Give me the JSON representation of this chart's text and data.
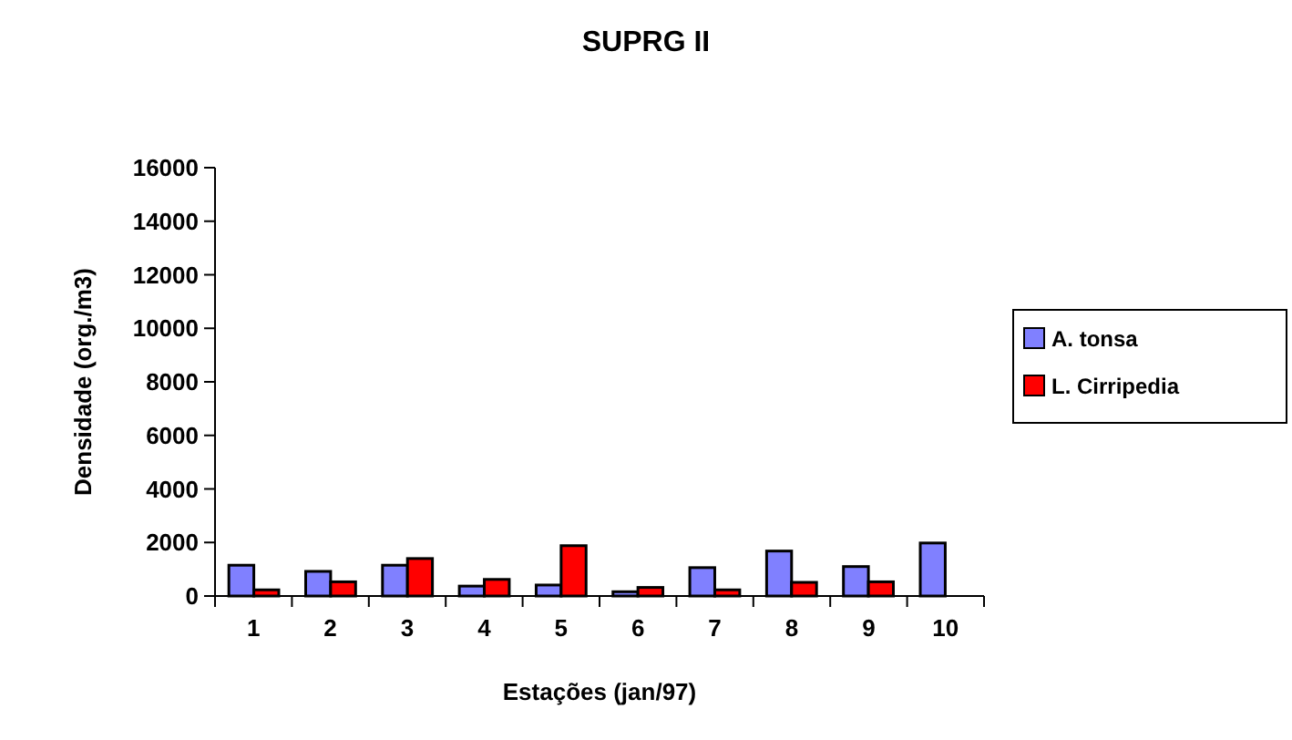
{
  "chart_data": {
    "type": "bar",
    "title": "SUPRG II",
    "xlabel": "Estações (jan/97)",
    "ylabel": "Densidade (org./m3)",
    "categories": [
      "1",
      "2",
      "3",
      "4",
      "5",
      "6",
      "7",
      "8",
      "9",
      "10"
    ],
    "series": [
      {
        "name": "A. tonsa",
        "color": "#8080ff",
        "values": [
          1150,
          920,
          1150,
          370,
          410,
          160,
          1060,
          1680,
          1100,
          1980
        ]
      },
      {
        "name": "L. Cirripedia",
        "color": "#ff0000",
        "values": [
          230,
          530,
          1400,
          620,
          1880,
          320,
          230,
          510,
          530,
          0
        ]
      }
    ],
    "ylim": [
      0,
      16000
    ],
    "yticks": [
      0,
      2000,
      4000,
      6000,
      8000,
      10000,
      12000,
      14000,
      16000
    ],
    "legend": "right"
  }
}
